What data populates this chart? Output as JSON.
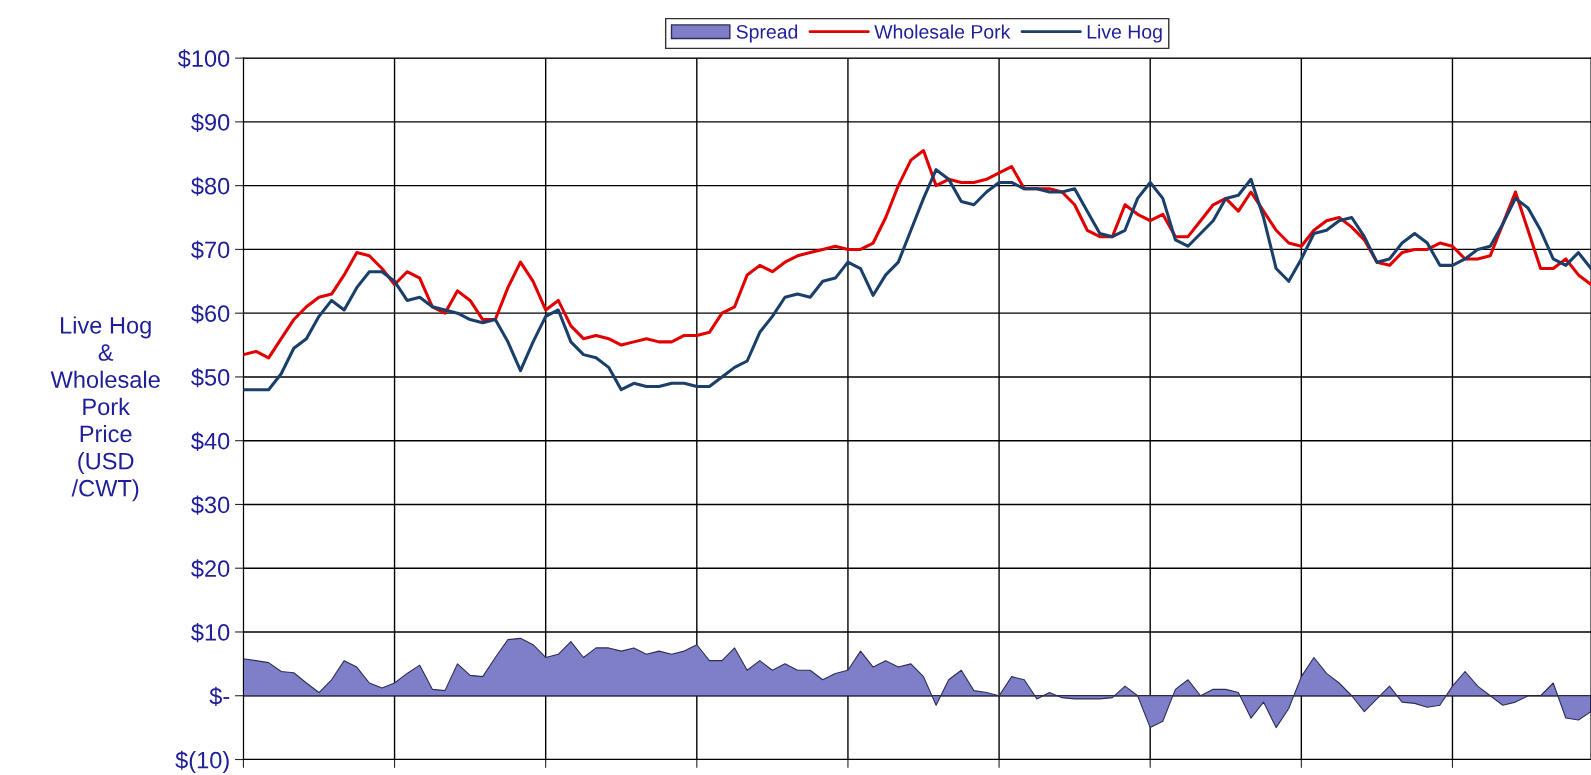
{
  "chart_data": {
    "type": "line",
    "ylabel": "Live Hog\n&\nWholesale\nPork\nPrice\n(USD\n/CWT)",
    "categories": [
      null,
      null,
      null,
      null,
      null,
      null,
      null,
      null,
      null,
      null,
      null,
      null,
      null,
      null,
      null,
      null,
      null,
      null,
      null,
      null,
      null,
      null,
      null,
      null,
      null,
      null,
      null,
      null,
      null,
      null,
      null,
      null,
      null,
      null,
      null,
      null,
      null,
      null,
      null,
      null,
      null,
      null,
      null,
      null,
      null,
      null,
      null,
      null,
      null,
      null,
      null,
      null,
      null,
      null,
      null,
      null,
      null,
      null,
      null,
      null,
      null,
      null,
      null,
      null,
      null,
      null,
      null,
      null,
      null,
      null,
      null,
      null,
      null,
      null,
      null,
      null,
      null,
      null,
      null,
      null,
      null,
      null,
      null,
      null,
      null,
      null,
      null,
      null,
      null,
      null,
      null,
      null,
      null,
      null,
      null,
      null,
      null,
      null,
      null,
      null,
      null,
      null,
      null,
      null,
      null,
      null,
      null,
      null
    ],
    "series": [
      {
        "name": "Spread",
        "type": "area",
        "color": "#7f7fc9",
        "values": [
          5.8,
          5.5,
          5.2,
          3.8,
          3.6,
          2,
          0.5,
          2.5,
          5.5,
          4.5,
          2,
          1.2,
          2,
          3.5,
          4.8,
          1,
          0.8,
          5,
          3.2,
          3,
          6,
          8.8,
          9,
          8,
          6,
          6.5,
          8.5,
          6,
          7.5,
          7.5,
          7,
          7.5,
          6.5,
          7,
          6.5,
          7,
          8,
          5.5,
          5.5,
          7.5,
          4,
          5.5,
          4,
          5,
          4,
          4,
          2.5,
          3.5,
          4,
          7,
          4.5,
          5.5,
          4.5,
          5,
          3,
          -1.5,
          2.5,
          4,
          0.8,
          0.5,
          0,
          3,
          2.5,
          -0.5,
          0.5,
          -0.3,
          -0.5,
          -0.5,
          -0.5,
          -0.3,
          1.5,
          0,
          -5,
          -4,
          1,
          2.5,
          0,
          1,
          1,
          0.5,
          -3.5,
          -1,
          -5,
          -2,
          3,
          6,
          3.5,
          2,
          0,
          -2.5,
          -0.5,
          1.5,
          -1,
          -1.2,
          -1.8,
          -1.5,
          1.5,
          3.8,
          1.5,
          0,
          -1.5,
          -1,
          0,
          0,
          2,
          -3.5,
          -3.8,
          -2.5
        ]
      },
      {
        "name": "Wholesale Pork",
        "color": "#e00000",
        "values": [
          53.5,
          54,
          53,
          56,
          59,
          61,
          62.5,
          63,
          66,
          69.5,
          69,
          67,
          64.5,
          66.5,
          65.5,
          61,
          60,
          63.5,
          62,
          59,
          59,
          64,
          68,
          65,
          60.5,
          62,
          58,
          56,
          56.5,
          56,
          55,
          55.5,
          56,
          55.5,
          55.5,
          56.5,
          56.5,
          57,
          60,
          61,
          66,
          67.5,
          66.5,
          68,
          69,
          69.5,
          70,
          70.5,
          70,
          70,
          71,
          75,
          80,
          84,
          85.5,
          80,
          81,
          80.5,
          80.5,
          81,
          82,
          83,
          79.5,
          79.5,
          79.5,
          79,
          77,
          73,
          72,
          72,
          77,
          75.5,
          74.5,
          75.5,
          72,
          72,
          74.5,
          77,
          78,
          76,
          79,
          76,
          73,
          71,
          70.5,
          73,
          74.5,
          75,
          73.5,
          71.5,
          68,
          67.5,
          69.5,
          70,
          70,
          71,
          70.5,
          68.5,
          68.5,
          69,
          74,
          79,
          73,
          67,
          67,
          68.5,
          66,
          64.5
        ]
      },
      {
        "name": "Live Hog",
        "color": "#1a3f6b",
        "values": [
          48,
          48,
          48,
          50.5,
          54.5,
          56,
          59.5,
          62,
          60.5,
          64,
          66.5,
          66.5,
          65,
          62,
          62.5,
          61,
          60.5,
          60,
          59,
          58.5,
          59,
          55.5,
          51,
          55.5,
          59.5,
          60.5,
          55.5,
          53.5,
          53,
          51.5,
          48,
          49,
          48.5,
          48.5,
          49,
          49,
          48.5,
          48.5,
          50,
          51.5,
          52.5,
          57,
          59.5,
          62.5,
          63,
          62.5,
          65,
          65.5,
          68,
          67,
          62.8,
          66,
          68,
          73,
          78,
          82.5,
          81,
          77.5,
          77,
          79,
          80.5,
          80.5,
          79.5,
          79.5,
          79,
          79,
          79.5,
          76,
          72.5,
          72,
          73,
          78,
          80.5,
          78,
          71.5,
          70.5,
          72.5,
          74.5,
          78,
          78.5,
          81,
          75,
          67,
          65,
          68.5,
          72.5,
          73,
          74.5,
          75,
          72,
          68,
          68.5,
          71,
          72.5,
          71,
          67.5,
          67.5,
          68.5,
          70,
          70.5,
          74,
          78,
          76.5,
          73,
          68.5,
          67.5,
          69.5,
          67
        ]
      }
    ],
    "ylim": [
      -10,
      100
    ],
    "yticks": [
      {
        "value": -10,
        "label": "$(10)"
      },
      {
        "value": 0,
        "label": "$-"
      },
      {
        "value": 10,
        "label": "$10"
      },
      {
        "value": 20,
        "label": "$20"
      },
      {
        "value": 30,
        "label": "$30"
      },
      {
        "value": 40,
        "label": "$40"
      },
      {
        "value": 50,
        "label": "$50"
      },
      {
        "value": 60,
        "label": "$60"
      },
      {
        "value": 70,
        "label": "$70"
      },
      {
        "value": 80,
        "label": "$80"
      },
      {
        "value": 90,
        "label": "$90"
      },
      {
        "value": 100,
        "label": "$100"
      }
    ],
    "grid": true,
    "legend": "top",
    "tick_labels": "y"
  }
}
